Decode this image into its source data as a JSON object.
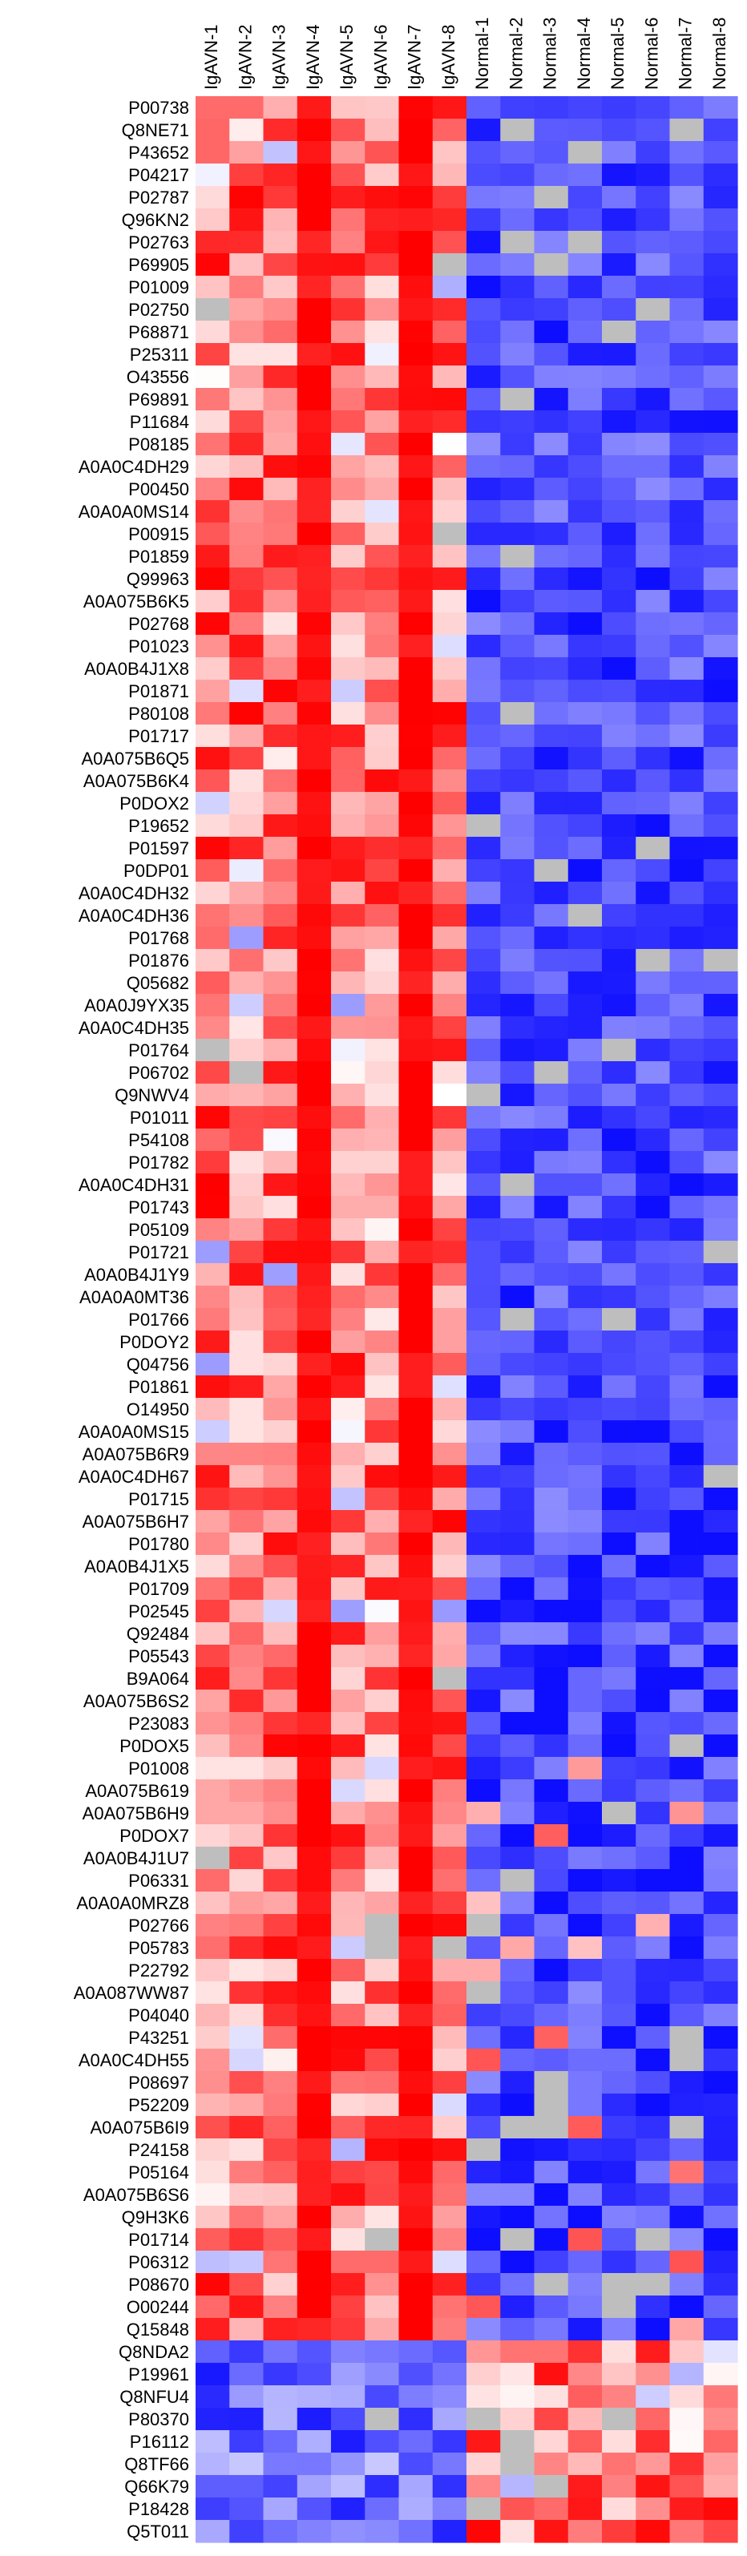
{
  "chart_data": {
    "type": "heatmap",
    "columns": [
      "IgAVN-1",
      "IgAVN-2",
      "IgAVN-3",
      "IgAVN-4",
      "IgAVN-5",
      "IgAVN-6",
      "IgAVN-7",
      "IgAVN-8",
      "Normal-1",
      "Normal-2",
      "Normal-3",
      "Normal-4",
      "Normal-5",
      "Normal-6",
      "Normal-7",
      "Normal-8"
    ],
    "rows": [
      "P00738",
      "Q8NE71",
      "P43652",
      "P04217",
      "P02787",
      "Q96KN2",
      "P02763",
      "P69905",
      "P01009",
      "P02750",
      "P68871",
      "P25311",
      "O43556",
      "P69891",
      "P11684",
      "P08185",
      "A0A0C4DH29",
      "P00450",
      "A0A0A0MS14",
      "P00915",
      "P01859",
      "Q99963",
      "A0A075B6K5",
      "P02768",
      "P01023",
      "A0A0B4J1X8",
      "P01871",
      "P80108",
      "P01717",
      "A0A075B6Q5",
      "A0A075B6K4",
      "P0DOX2",
      "P19652",
      "P01597",
      "P0DP01",
      "A0A0C4DH32",
      "A0A0C4DH36",
      "P01768",
      "P01876",
      "Q05682",
      "A0A0J9YX35",
      "A0A0C4DH35",
      "P01764",
      "P06702",
      "Q9NWV4",
      "P01011",
      "P54108",
      "P01782",
      "A0A0C4DH31",
      "P01743",
      "P05109",
      "P01721",
      "A0A0B4J1Y9",
      "A0A0A0MT36",
      "P01766",
      "P0DOY2",
      "Q04756",
      "P01861",
      "O14950",
      "A0A0A0MS15",
      "A0A075B6R9",
      "A0A0C4DH67",
      "P01715",
      "A0A075B6H7",
      "P01780",
      "A0A0B4J1X5",
      "P01709",
      "P02545",
      "Q92484",
      "P05543",
      "B9A064",
      "A0A075B6S2",
      "P23083",
      "P0DOX5",
      "P01008",
      "A0A075B619",
      "A0A075B6H9",
      "P0DOX7",
      "A0A0B4J1U7",
      "P06331",
      "A0A0A0MRZ8",
      "P02766",
      "P05783",
      "P22792",
      "A0A087WW87",
      "P04040",
      "P43251",
      "A0A0C4DH55",
      "P08697",
      "P52209",
      "A0A075B6I9",
      "P24158",
      "P05164",
      "A0A075B6S6",
      "Q9H3K6",
      "P01714",
      "P06312",
      "P08670",
      "O00244",
      "Q15848",
      "Q8NDA2",
      "P19961",
      "Q8NFU4",
      "P80370",
      "P16112",
      "Q8TF66",
      "Q66K79",
      "P18428",
      "Q5T011"
    ],
    "value_range": [
      -2,
      2
    ],
    "color_scale": {
      "low": "#0000ff",
      "mid": "#ffffff",
      "high": "#ff0000",
      "missing": "#bebebe"
    },
    "values": []
  }
}
